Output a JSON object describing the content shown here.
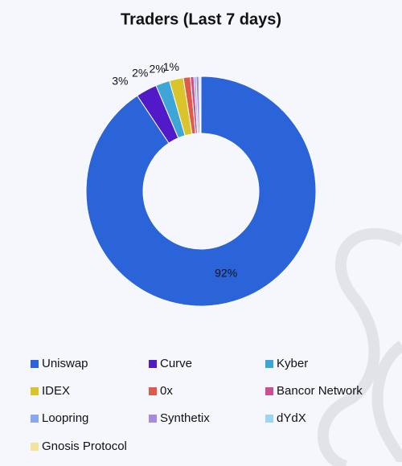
{
  "chart_data": {
    "type": "donut",
    "title": "Traders (Last 7 days)",
    "categories": [
      "Uniswap",
      "Curve",
      "Kyber",
      "IDEX",
      "0x",
      "Bancor Network",
      "Loopring",
      "Synthetix",
      "dYdX",
      "Gnosis Protocol"
    ],
    "values": [
      92,
      3,
      2,
      2,
      1,
      0.5,
      0.3,
      0.4,
      0.2,
      0.1
    ],
    "value_labels": [
      "92%",
      "3%",
      "2%",
      "2%",
      "1%",
      null,
      null,
      null,
      null,
      null
    ],
    "colors": [
      "#2b63d9",
      "#5219c9",
      "#3ea6d6",
      "#d9c42b",
      "#e05a4a",
      "#cc4f8f",
      "#8aa6ee",
      "#a58be0",
      "#9fd4f0",
      "#f2e49a"
    ]
  }
}
